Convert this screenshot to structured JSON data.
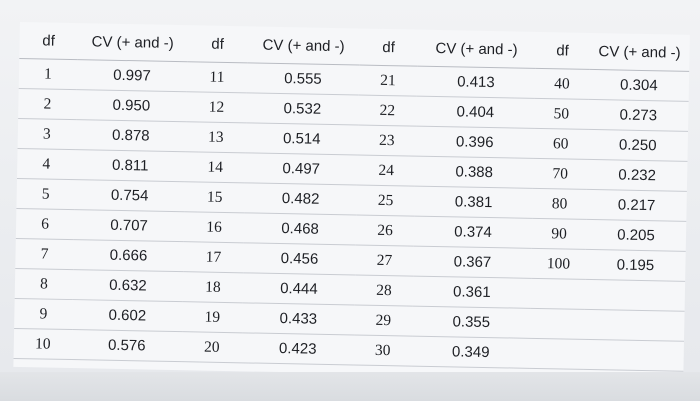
{
  "table": {
    "headers": [
      "df",
      "CV (+ and -)",
      "df",
      "CV (+ and -)",
      "df",
      "CV (+ and -)",
      "df",
      "CV (+ and -)"
    ],
    "rows": [
      [
        "1",
        "0.997",
        "11",
        "0.555",
        "21",
        "0.413",
        "40",
        "0.304"
      ],
      [
        "2",
        "0.950",
        "12",
        "0.532",
        "22",
        "0.404",
        "50",
        "0.273"
      ],
      [
        "3",
        "0.878",
        "13",
        "0.514",
        "23",
        "0.396",
        "60",
        "0.250"
      ],
      [
        "4",
        "0.811",
        "14",
        "0.497",
        "24",
        "0.388",
        "70",
        "0.232"
      ],
      [
        "5",
        "0.754",
        "15",
        "0.482",
        "25",
        "0.381",
        "80",
        "0.217"
      ],
      [
        "6",
        "0.707",
        "16",
        "0.468",
        "26",
        "0.374",
        "90",
        "0.205"
      ],
      [
        "7",
        "0.666",
        "17",
        "0.456",
        "27",
        "0.367",
        "100",
        "0.195"
      ],
      [
        "8",
        "0.632",
        "18",
        "0.444",
        "28",
        "0.361",
        "",
        ""
      ],
      [
        "9",
        "0.602",
        "19",
        "0.433",
        "29",
        "0.355",
        "",
        ""
      ],
      [
        "10",
        "0.576",
        "20",
        "0.423",
        "30",
        "0.349",
        "",
        ""
      ]
    ]
  }
}
